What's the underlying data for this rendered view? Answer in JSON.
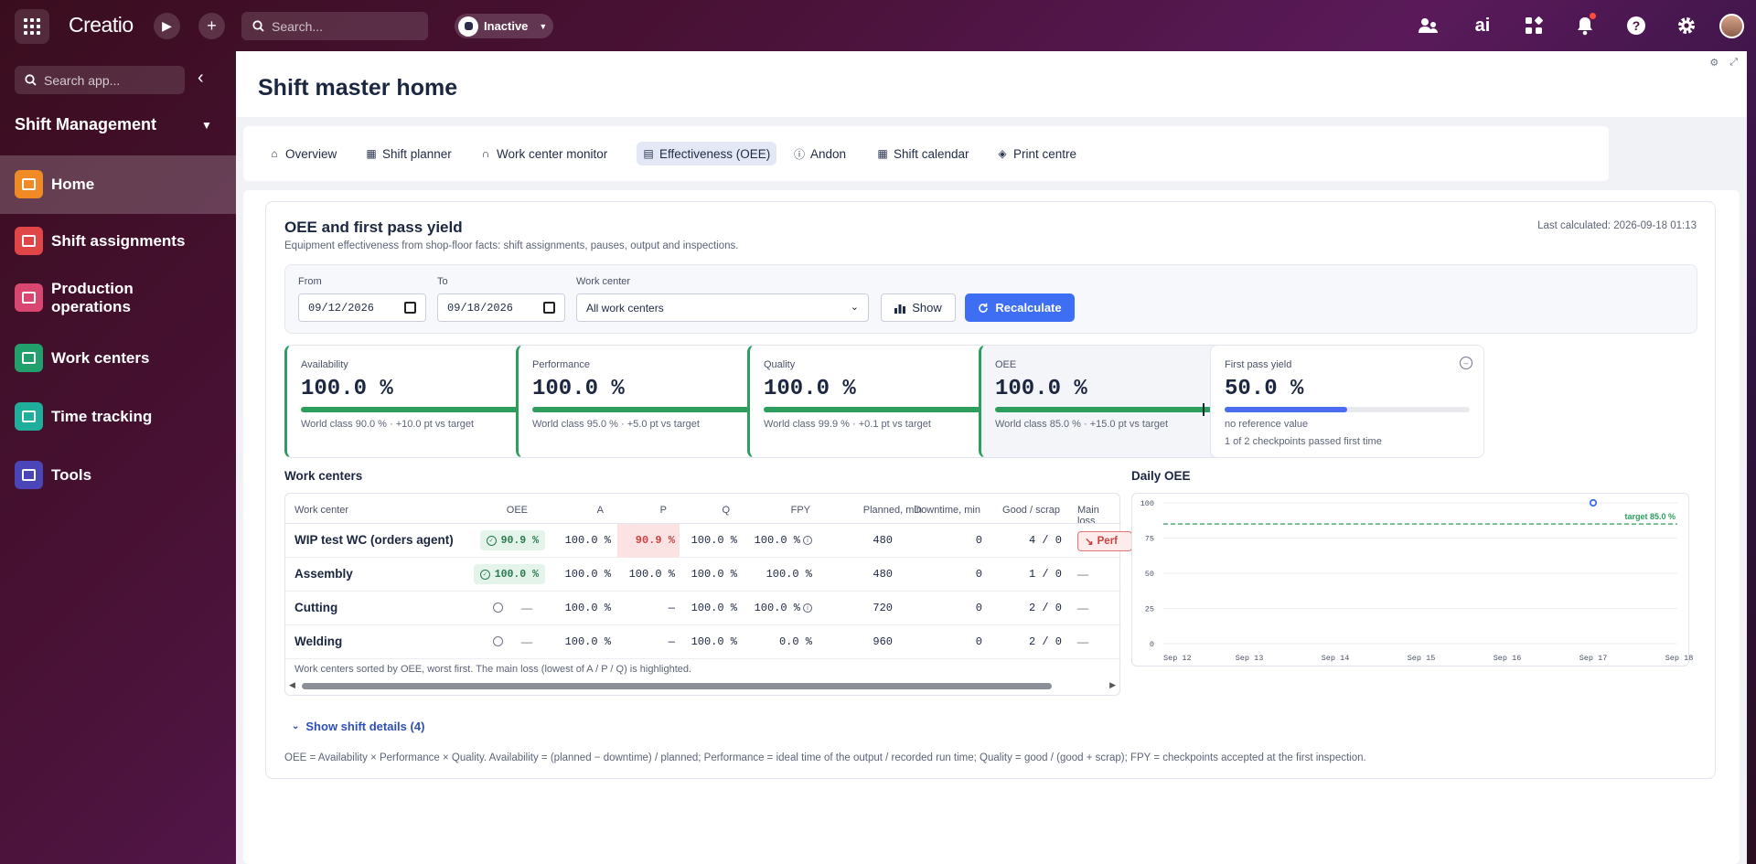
{
  "app": {
    "logo_text": "Creatio",
    "search_placeholder": "Search...",
    "status_label": "Inactive",
    "ai_label": "ai"
  },
  "sidebar": {
    "search_placeholder": "Search app...",
    "workspace_title": "Shift Management",
    "items": [
      {
        "label": "Home",
        "color": "#f08a24",
        "active": true
      },
      {
        "label": "Shift assignments",
        "color": "#e04646"
      },
      {
        "label": "Production operations",
        "color": "#d9466f"
      },
      {
        "label": "Work centers",
        "color": "#22a06b"
      },
      {
        "label": "Time tracking",
        "color": "#1fae9c"
      },
      {
        "label": "Tools",
        "color": "#4a46b8"
      }
    ]
  },
  "page": {
    "title": "Shift master home",
    "tabs": [
      {
        "label": "Overview",
        "icon": "home-icon"
      },
      {
        "label": "Shift planner",
        "icon": "calendar-grid-icon"
      },
      {
        "label": "Work center monitor",
        "icon": "headset-icon"
      },
      {
        "label": "Effectiveness (OEE)",
        "icon": "chart-box-icon",
        "active": true
      },
      {
        "label": "Andon",
        "icon": "info-icon"
      },
      {
        "label": "Shift calendar",
        "icon": "calendar-icon"
      },
      {
        "label": "Print centre",
        "icon": "tag-icon"
      }
    ]
  },
  "oee": {
    "title": "OEE and first pass yield",
    "subtitle": "Equipment effectiveness from shop-floor facts: shift assignments, pauses, output and inspections.",
    "last_calculated": "Last calculated: 2026-09-18 01:13",
    "filters": {
      "from_label": "From",
      "from_value": "09/12/2026",
      "to_label": "To",
      "to_value": "09/18/2026",
      "wc_label": "Work center",
      "wc_value": "All work centers",
      "show_button": "Show",
      "recalc_button": "Recalculate"
    },
    "kpis": [
      {
        "label": "Availability",
        "value": "100.0 %",
        "fill": 1.0,
        "target": 0.9,
        "color": "#2e9e5f",
        "note": "World class 90.0 % · +10.0 pt vs target",
        "status": "ok"
      },
      {
        "label": "Performance",
        "value": "100.0 %",
        "fill": 1.0,
        "target": 0.95,
        "color": "#2e9e5f",
        "note": "World class 95.0 % · +5.0 pt vs target",
        "status": "ok"
      },
      {
        "label": "Quality",
        "value": "100.0 %",
        "fill": 1.0,
        "target": 0.999,
        "color": "#2e9e5f",
        "note": "World class 99.9 % · +0.1 pt vs target",
        "status": "ok"
      },
      {
        "label": "OEE",
        "value": "100.0 %",
        "fill": 1.0,
        "target": 0.85,
        "color": "#2e9e5f",
        "note": "World class 85.0 % · +15.0 pt vs target",
        "status": "ok"
      },
      {
        "label": "First pass yield",
        "value": "50.0 %",
        "fill": 0.5,
        "target": null,
        "color": "#4a6cf0",
        "note": "no reference value",
        "note2": "1 of 2 checkpoints passed first time",
        "status": "neutral"
      }
    ],
    "work_centers_title": "Work centers",
    "table": {
      "headers": [
        "Work center",
        "OEE",
        "A",
        "P",
        "Q",
        "FPY",
        "Planned, min",
        "Downtime, min",
        "Good / scrap",
        "Main loss"
      ],
      "rows": [
        {
          "name": "WIP test WC (orders agent)",
          "oee": "90.9 %",
          "a": "100.0 %",
          "p": "90.9 %",
          "q": "100.0 %",
          "fpy": "100.0 %",
          "fpy_info": true,
          "planned": "480",
          "downtime": "0",
          "good_scrap": "4 / 0",
          "main_loss": "Perf"
        },
        {
          "name": "Assembly",
          "oee": "100.0 %",
          "a": "100.0 %",
          "p": "100.0 %",
          "q": "100.0 %",
          "fpy": "100.0 %",
          "fpy_info": false,
          "planned": "480",
          "downtime": "0",
          "good_scrap": "1 / 0",
          "main_loss": "—"
        },
        {
          "name": "Cutting",
          "oee": "—",
          "a": "100.0 %",
          "p": "—",
          "q": "100.0 %",
          "fpy": "100.0 %",
          "fpy_info": true,
          "planned": "720",
          "downtime": "0",
          "good_scrap": "2 / 0",
          "main_loss": "—"
        },
        {
          "name": "Welding",
          "oee": "—",
          "a": "100.0 %",
          "p": "—",
          "q": "100.0 %",
          "fpy": "0.0 %",
          "fpy_info": false,
          "planned": "960",
          "downtime": "0",
          "good_scrap": "2 / 0",
          "main_loss": "—"
        }
      ],
      "note": "Work centers sorted by OEE, worst first. The main loss (lowest of A / P / Q) is highlighted."
    },
    "details_link": "Show shift details (4)",
    "footnote": "OEE = Availability × Performance × Quality. Availability = (planned − downtime) / planned; Performance = ideal time of the output / recorded run time; Quality = good / (good + scrap); FPY = checkpoints accepted at the first inspection."
  },
  "chart_data": {
    "type": "line",
    "title": "Daily OEE",
    "categories": [
      "Sep 12",
      "Sep 13",
      "Sep 14",
      "Sep 15",
      "Sep 16",
      "Sep 17",
      "Sep 18"
    ],
    "series": [
      {
        "values": [
          null,
          null,
          null,
          null,
          null,
          100,
          null
        ]
      }
    ],
    "target": {
      "label": "target 85.0 %",
      "value": 85
    },
    "yticks": [
      0,
      25,
      50,
      75,
      100
    ],
    "ylim": [
      0,
      100
    ],
    "grid": true,
    "colors": {
      "series": "#3d6ef3",
      "target": "#2e9e5f"
    }
  }
}
